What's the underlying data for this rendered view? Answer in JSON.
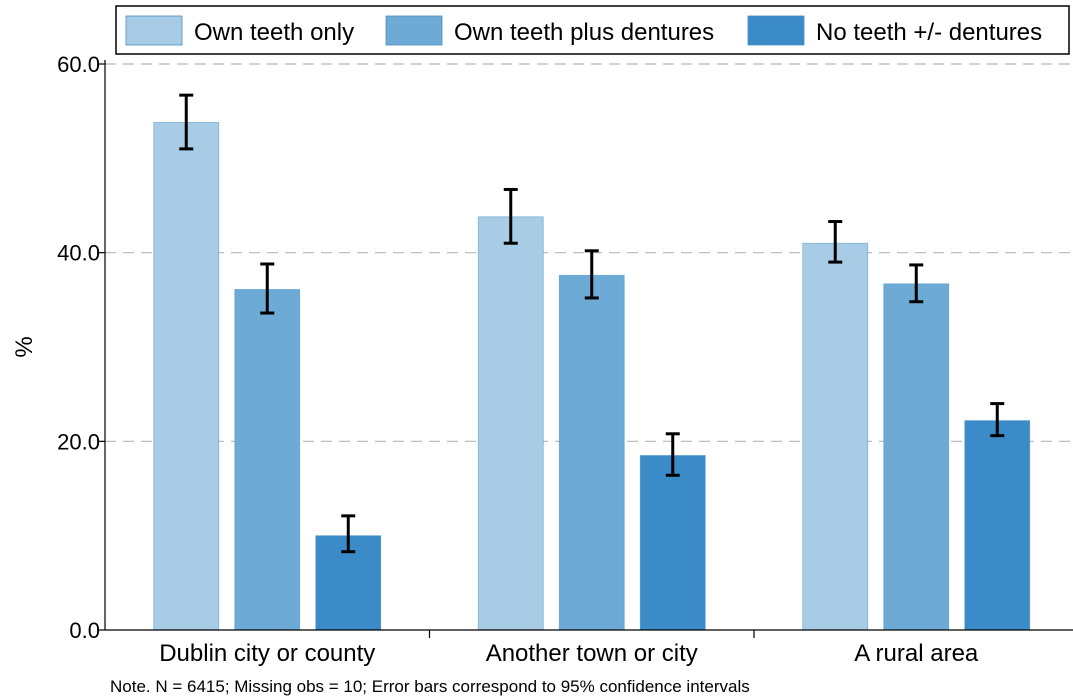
{
  "chart_data": {
    "type": "bar",
    "ylabel": "%",
    "xlabel": "",
    "ylim": [
      0,
      60
    ],
    "y_ticks": [
      0,
      20,
      40,
      60
    ],
    "y_tick_labels": [
      "0.0",
      "20.0",
      "40.0",
      "60.0"
    ],
    "grid": "horizontal dashed",
    "legend_position": "top",
    "categories": [
      "Dublin city or county",
      "Another town or city",
      "A rural area"
    ],
    "series": [
      {
        "name": "Own teeth only",
        "color": "#a9cce6",
        "values": [
          53.8,
          43.8,
          41.0
        ],
        "ci_low": [
          51.0,
          41.0,
          39.0
        ],
        "ci_high": [
          56.7,
          46.7,
          43.3
        ]
      },
      {
        "name": "Own teeth plus dentures",
        "color": "#6eaad6",
        "values": [
          36.1,
          37.6,
          36.7
        ],
        "ci_low": [
          33.6,
          35.2,
          34.8
        ],
        "ci_high": [
          38.8,
          40.2,
          38.7
        ]
      },
      {
        "name": "No teeth +/- dentures",
        "color": "#3a8bc7",
        "values": [
          10.0,
          18.5,
          22.2
        ],
        "ci_low": [
          8.3,
          16.4,
          20.6
        ],
        "ci_high": [
          12.1,
          20.8,
          24.0
        ]
      }
    ],
    "note": "Note. N = 6415; Missing obs = 10; Error bars correspond to 95% confidence intervals"
  }
}
